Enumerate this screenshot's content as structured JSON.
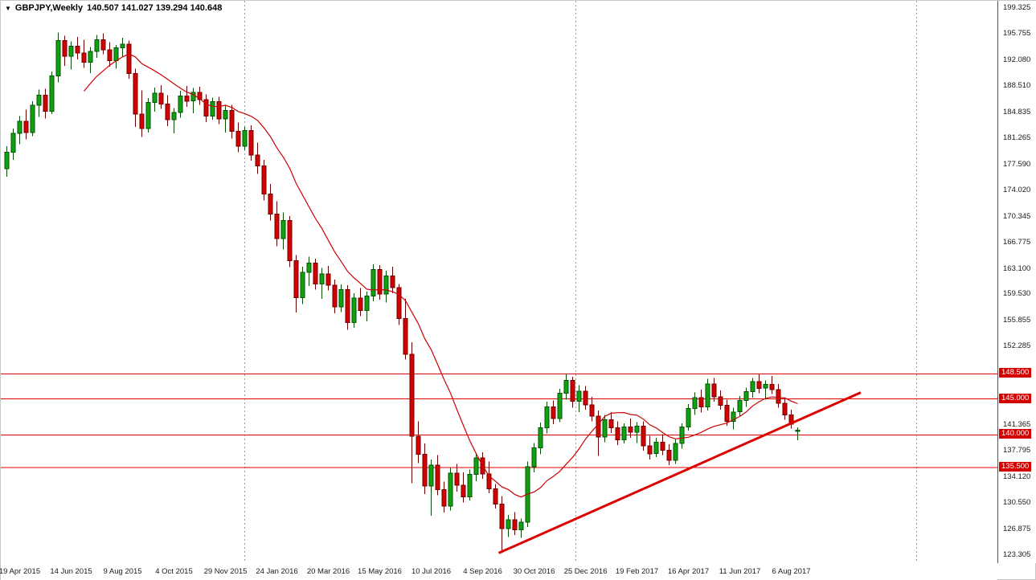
{
  "header": {
    "dropdown_icon": "▼",
    "symbol": "GBPJPY,Weekly",
    "ohlc": "140.507 141.027 139.294 140.648"
  },
  "chart_data": {
    "type": "candlestick",
    "symbol": "GBPJPY",
    "timeframe": "Weekly",
    "current_bar": {
      "open": 140.507,
      "high": 141.027,
      "low": 139.294,
      "close": 140.648
    },
    "ylim": [
      123.305,
      199.325
    ],
    "y_axis_ticks": [
      "199.325",
      "195.755",
      "192.080",
      "188.510",
      "184.835",
      "181.265",
      "177.590",
      "174.020",
      "170.345",
      "166.775",
      "163.100",
      "159.530",
      "155.855",
      "152.285",
      "141.365",
      "137.795",
      "134.120",
      "130.550",
      "126.875",
      "123.305"
    ],
    "price_lines": [
      {
        "label": "148.500",
        "value": 148.5
      },
      {
        "label": "145.000",
        "value": 145.0
      },
      {
        "label": "140.000",
        "value": 140.0
      },
      {
        "label": "135.500",
        "value": 135.5
      }
    ],
    "x_axis": {
      "labels": [
        "19 Apr 2015",
        "14 Jun 2015",
        "9 Aug 2015",
        "4 Oct 2015",
        "29 Nov 2015",
        "24 Jan 2016",
        "20 Mar 2016",
        "15 May 2016",
        "10 Jul 2016",
        "4 Sep 2016",
        "30 Oct 2016",
        "25 Dec 2016",
        "19 Feb 2017",
        "16 Apr 2017",
        "11 Jun 2017",
        "6 Aug 2017"
      ],
      "indices": [
        2,
        10,
        18,
        26,
        34,
        42,
        50,
        58,
        66,
        74,
        82,
        90,
        98,
        106,
        114,
        122
      ]
    },
    "v_gridlines_indices": [
      37,
      88.5,
      141.5
    ],
    "trendline": {
      "from": {
        "index": 76.5,
        "price": 123.6
      },
      "to": {
        "index": 132.8,
        "price": 145.9
      }
    },
    "ma": {
      "type": "sma",
      "period": 13,
      "color": "#cc0000"
    },
    "colors": {
      "up_fill": "#0fa30f",
      "up_stroke": "#064d06",
      "down_fill": "#d60000",
      "down_stroke": "#6b0000",
      "level_line": "#e00000",
      "trendline": "#dd0000",
      "badge_bg": "#d40000",
      "badge_text": "#ffffff",
      "axis_text": "#1a1a1a",
      "grid": "#999999",
      "background": "#ffffff"
    },
    "candles": [
      [
        177.0,
        180.1,
        175.9,
        179.3
      ],
      [
        179.3,
        182.6,
        178.2,
        181.9
      ],
      [
        181.9,
        184.3,
        180.4,
        183.6
      ],
      [
        183.6,
        185.2,
        181.1,
        182.0
      ],
      [
        182.0,
        186.4,
        181.5,
        185.8
      ],
      [
        185.8,
        188.0,
        184.2,
        187.2
      ],
      [
        187.2,
        188.1,
        184.0,
        185.0
      ],
      [
        185.0,
        190.5,
        184.6,
        189.9
      ],
      [
        189.9,
        195.9,
        189.0,
        194.8
      ],
      [
        194.8,
        195.5,
        191.3,
        192.6
      ],
      [
        192.6,
        194.7,
        190.8,
        194.0
      ],
      [
        194.0,
        195.3,
        192.2,
        193.1
      ],
      [
        193.1,
        194.9,
        191.0,
        191.8
      ],
      [
        191.8,
        193.9,
        190.3,
        193.3
      ],
      [
        193.3,
        195.6,
        192.4,
        194.9
      ],
      [
        194.9,
        195.8,
        192.9,
        193.5
      ],
      [
        193.5,
        194.6,
        191.2,
        192.0
      ],
      [
        192.0,
        194.2,
        190.9,
        193.8
      ],
      [
        193.8,
        195.2,
        192.5,
        194.3
      ],
      [
        194.3,
        194.8,
        189.5,
        190.2
      ],
      [
        190.2,
        190.9,
        182.8,
        184.6
      ],
      [
        184.6,
        187.9,
        181.4,
        182.6
      ],
      [
        182.6,
        186.8,
        182.0,
        186.2
      ],
      [
        186.2,
        188.3,
        184.9,
        187.5
      ],
      [
        187.5,
        188.6,
        185.3,
        186.0
      ],
      [
        186.0,
        187.2,
        182.9,
        183.8
      ],
      [
        183.8,
        185.4,
        181.9,
        184.8
      ],
      [
        184.8,
        187.8,
        184.1,
        187.1
      ],
      [
        187.1,
        188.5,
        185.6,
        186.4
      ],
      [
        186.4,
        188.2,
        184.7,
        187.6
      ],
      [
        187.6,
        188.4,
        185.9,
        186.6
      ],
      [
        186.6,
        187.3,
        183.5,
        184.3
      ],
      [
        184.3,
        186.9,
        183.8,
        186.3
      ],
      [
        186.3,
        187.0,
        183.2,
        183.9
      ],
      [
        183.9,
        185.8,
        182.0,
        185.1
      ],
      [
        185.1,
        185.9,
        181.2,
        182.2
      ],
      [
        182.2,
        183.4,
        179.3,
        180.1
      ],
      [
        180.1,
        182.8,
        179.6,
        182.3
      ],
      [
        182.3,
        183.0,
        178.1,
        178.9
      ],
      [
        178.9,
        180.6,
        176.3,
        177.4
      ],
      [
        177.4,
        178.2,
        172.6,
        173.5
      ],
      [
        173.5,
        174.9,
        169.8,
        170.7
      ],
      [
        170.7,
        172.5,
        166.2,
        167.3
      ],
      [
        167.3,
        170.9,
        165.8,
        169.8
      ],
      [
        169.8,
        170.4,
        163.3,
        164.2
      ],
      [
        164.2,
        165.0,
        157.0,
        159.1
      ],
      [
        159.1,
        163.4,
        158.2,
        162.6
      ],
      [
        162.6,
        164.8,
        160.7,
        163.9
      ],
      [
        163.9,
        164.5,
        160.2,
        161.0
      ],
      [
        161.0,
        163.2,
        158.9,
        162.4
      ],
      [
        162.4,
        163.5,
        160.1,
        160.8
      ],
      [
        160.8,
        161.6,
        156.9,
        157.8
      ],
      [
        157.8,
        160.9,
        157.1,
        160.2
      ],
      [
        160.2,
        160.8,
        154.6,
        155.6
      ],
      [
        155.6,
        159.7,
        154.9,
        159.0
      ],
      [
        159.0,
        160.4,
        156.5,
        157.3
      ],
      [
        157.3,
        159.9,
        155.8,
        159.3
      ],
      [
        159.3,
        163.7,
        158.6,
        163.0
      ],
      [
        163.0,
        163.6,
        158.8,
        159.6
      ],
      [
        159.6,
        162.8,
        158.4,
        162.1
      ],
      [
        162.1,
        163.4,
        159.7,
        160.5
      ],
      [
        160.5,
        161.0,
        155.3,
        156.2
      ],
      [
        156.2,
        158.9,
        150.5,
        151.2
      ],
      [
        151.2,
        152.9,
        133.3,
        139.8
      ],
      [
        139.8,
        141.9,
        136.1,
        137.3
      ],
      [
        137.3,
        138.8,
        131.8,
        132.9
      ],
      [
        132.9,
        136.6,
        128.8,
        135.8
      ],
      [
        135.8,
        137.2,
        131.6,
        132.4
      ],
      [
        132.4,
        133.5,
        129.2,
        130.1
      ],
      [
        130.1,
        135.4,
        129.5,
        134.7
      ],
      [
        134.7,
        136.0,
        132.1,
        133.0
      ],
      [
        133.0,
        134.8,
        130.6,
        131.4
      ],
      [
        131.4,
        135.2,
        130.9,
        134.5
      ],
      [
        134.5,
        137.4,
        133.6,
        136.8
      ],
      [
        136.8,
        137.6,
        133.9,
        134.6
      ],
      [
        134.6,
        136.3,
        131.9,
        132.5
      ],
      [
        132.5,
        133.2,
        129.8,
        130.4
      ],
      [
        130.4,
        131.5,
        123.6,
        127.0
      ],
      [
        127.0,
        128.9,
        125.8,
        128.2
      ],
      [
        128.2,
        129.3,
        126.1,
        126.8
      ],
      [
        126.8,
        128.4,
        125.7,
        127.9
      ],
      [
        127.9,
        136.3,
        127.2,
        135.6
      ],
      [
        135.6,
        138.9,
        134.8,
        138.2
      ],
      [
        138.2,
        141.7,
        137.3,
        141.0
      ],
      [
        141.0,
        144.6,
        140.2,
        143.9
      ],
      [
        143.9,
        144.8,
        141.5,
        142.3
      ],
      [
        142.3,
        146.4,
        141.8,
        145.8
      ],
      [
        145.8,
        148.5,
        144.9,
        147.6
      ],
      [
        147.6,
        148.1,
        143.8,
        144.7
      ],
      [
        144.7,
        146.9,
        143.2,
        146.1
      ],
      [
        146.1,
        146.8,
        143.5,
        144.2
      ],
      [
        144.2,
        145.3,
        141.9,
        142.6
      ],
      [
        142.6,
        143.4,
        137.1,
        139.7
      ],
      [
        139.7,
        142.8,
        139.0,
        142.1
      ],
      [
        142.1,
        143.2,
        140.3,
        141.0
      ],
      [
        141.0,
        141.9,
        138.6,
        139.3
      ],
      [
        139.3,
        141.6,
        138.8,
        141.1
      ],
      [
        141.1,
        142.3,
        139.6,
        140.4
      ],
      [
        140.4,
        141.8,
        138.9,
        141.2
      ],
      [
        141.2,
        141.9,
        137.8,
        138.5
      ],
      [
        138.5,
        139.9,
        136.6,
        137.4
      ],
      [
        137.4,
        139.6,
        136.9,
        139.0
      ],
      [
        139.0,
        140.1,
        137.2,
        137.9
      ],
      [
        137.9,
        138.7,
        135.8,
        136.5
      ],
      [
        136.5,
        139.4,
        136.0,
        138.8
      ],
      [
        138.8,
        141.6,
        138.1,
        141.1
      ],
      [
        141.1,
        144.3,
        140.6,
        143.7
      ],
      [
        143.7,
        145.9,
        142.8,
        145.2
      ],
      [
        145.2,
        146.3,
        143.1,
        143.9
      ],
      [
        143.9,
        147.8,
        143.4,
        147.1
      ],
      [
        147.1,
        147.9,
        144.6,
        145.3
      ],
      [
        145.3,
        146.2,
        143.5,
        144.1
      ],
      [
        144.1,
        144.9,
        141.3,
        141.9
      ],
      [
        141.9,
        143.8,
        140.8,
        143.2
      ],
      [
        143.2,
        145.4,
        142.6,
        144.8
      ],
      [
        144.8,
        146.6,
        143.9,
        146.0
      ],
      [
        146.0,
        147.9,
        145.2,
        147.4
      ],
      [
        147.4,
        148.4,
        145.8,
        146.5
      ],
      [
        146.5,
        147.6,
        144.9,
        147.0
      ],
      [
        147.0,
        148.2,
        145.7,
        146.3
      ],
      [
        146.3,
        147.1,
        143.8,
        144.4
      ],
      [
        144.4,
        145.2,
        142.1,
        142.8
      ],
      [
        142.8,
        143.5,
        140.9,
        141.5
      ],
      [
        140.507,
        141.027,
        139.294,
        140.648
      ]
    ]
  }
}
